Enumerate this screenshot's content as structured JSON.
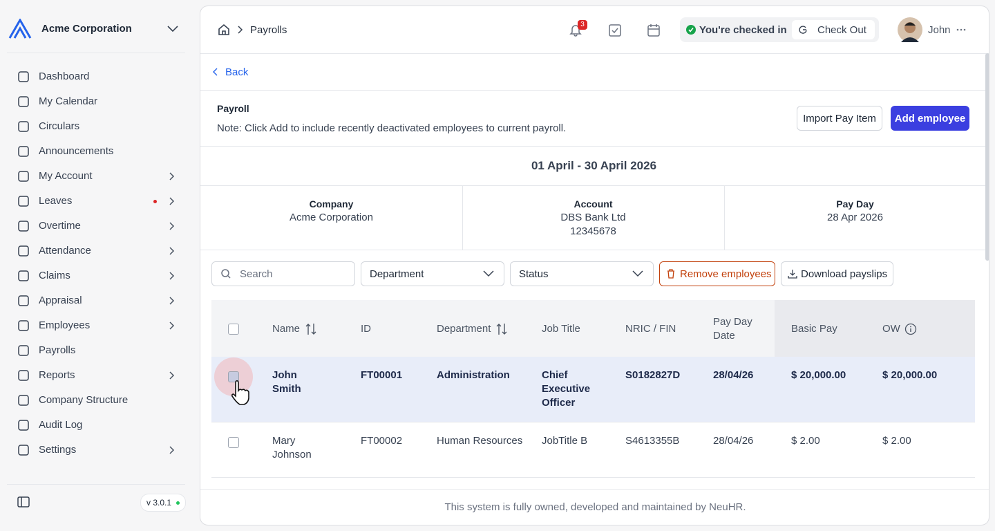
{
  "sidebar": {
    "company": "Acme Corporation",
    "nav": [
      {
        "label": "Dashboard",
        "expandable": false
      },
      {
        "label": "My Calendar",
        "expandable": false
      },
      {
        "label": "Circulars",
        "expandable": false
      },
      {
        "label": "Announcements",
        "expandable": false
      },
      {
        "label": "My Account",
        "expandable": true
      },
      {
        "label": "Leaves",
        "expandable": true
      },
      {
        "label": "Overtime",
        "expandable": true
      },
      {
        "label": "Attendance",
        "expandable": true
      },
      {
        "label": "Claims",
        "expandable": true
      },
      {
        "label": "Appraisal",
        "expandable": true
      },
      {
        "label": "Employees",
        "expandable": true
      },
      {
        "label": "Payrolls",
        "expandable": false
      },
      {
        "label": "Reports",
        "expandable": true
      },
      {
        "label": "Company Structure",
        "expandable": false
      },
      {
        "label": "Audit Log",
        "expandable": false
      },
      {
        "label": "Settings",
        "expandable": true
      }
    ],
    "version": "v 3.0.1"
  },
  "header": {
    "breadcrumb": "Payrolls",
    "notifications": 3,
    "checkin_status": "You're checked in",
    "checkout": "Check Out",
    "user": "John"
  },
  "back": "Back",
  "payroll": {
    "title": "Payroll",
    "note": "Note: Click Add to include recently deactivated employees to current payroll.",
    "import": "Import Pay Item",
    "add": "Add employee",
    "period": "01 April - 30 April 2026",
    "info": [
      {
        "label": "Company",
        "lines": [
          "Acme Corporation"
        ]
      },
      {
        "label": "Account",
        "lines": [
          "DBS Bank Ltd",
          "12345678"
        ]
      },
      {
        "label": "Pay Day",
        "lines": [
          "28 Apr 2026"
        ]
      }
    ]
  },
  "filters": {
    "search": "Search",
    "department": "Department",
    "status": "Status",
    "remove": "Remove employees",
    "download": "Download payslips"
  },
  "table": {
    "columns": [
      "Name",
      "ID",
      "Department",
      "Job Title",
      "NRIC / FIN",
      "Pay Day Date",
      "Basic Pay",
      "OW"
    ],
    "rows": [
      [
        "John Smith",
        "FT00001",
        "Administration",
        "Chief Executive Officer",
        "S0182827D",
        "28/04/26",
        "$ 20,000.00",
        "$ 20,000.00"
      ],
      [
        "Mary Johnson",
        "FT00002",
        "Human Resources",
        "JobTitle B",
        "S4613355B",
        "28/04/26",
        "$ 2.00",
        "$ 2.00"
      ]
    ]
  },
  "footer": "This system is fully owned, developed and maintained by NeuHR."
}
